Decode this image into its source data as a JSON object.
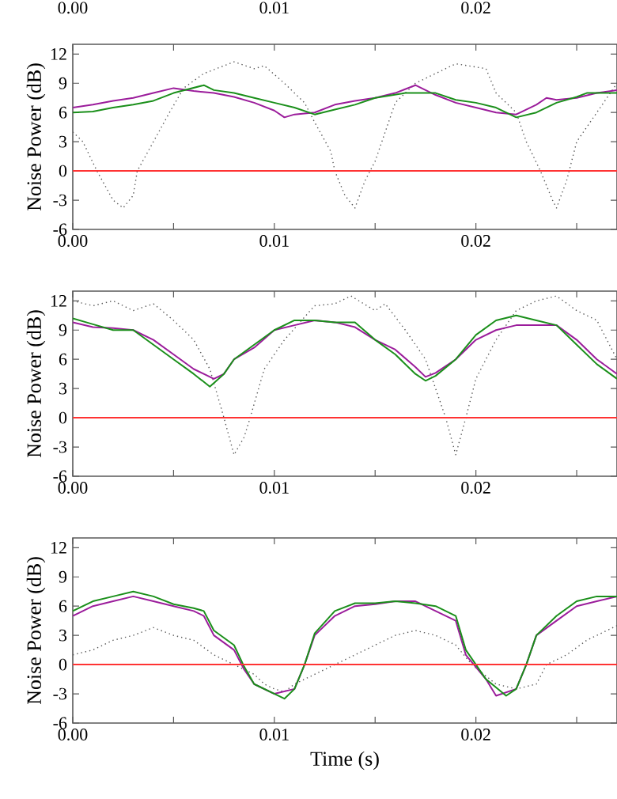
{
  "chart_data": [
    {
      "type": "other",
      "annotations": [
        "0.00",
        "0.01",
        "0.02"
      ]
    },
    {
      "type": "line",
      "ylabel": "Noise Power (dB)",
      "xlim": [
        0,
        0.027
      ],
      "ylim": [
        -6,
        13
      ],
      "xticks": [
        {
          "value": 0,
          "label": "0.00"
        },
        {
          "value": 0.005,
          "label": null
        },
        {
          "value": 0.01,
          "label": "0.01"
        },
        {
          "value": 0.015,
          "label": null
        },
        {
          "value": 0.02,
          "label": "0.02"
        },
        {
          "value": 0.025,
          "label": null
        }
      ],
      "yticks": [
        -6,
        -3,
        0,
        3,
        6,
        9,
        12
      ],
      "ref_lines": [
        {
          "axis": "y",
          "value": 0,
          "color": "#ff3333"
        }
      ],
      "series": [
        {
          "color": "#555555",
          "line_style": "dotted",
          "x": [
            0,
            0.0005,
            0.0012,
            0.002,
            0.0025,
            0.003,
            0.0032,
            0.004,
            0.0048,
            0.0055,
            0.0065,
            0.008,
            0.009,
            0.0095,
            0.0105,
            0.0115,
            0.012,
            0.0128,
            0.013,
            0.0135,
            0.014,
            0.0145,
            0.015,
            0.0155,
            0.016,
            0.017,
            0.018,
            0.019,
            0.0205,
            0.021,
            0.022,
            0.0225,
            0.0232,
            0.0238,
            0.024,
            0.0245,
            0.025,
            0.026,
            0.027
          ],
          "values": [
            4,
            3,
            0,
            -3,
            -3.8,
            -2.5,
            0,
            3,
            6,
            8.5,
            10,
            11.2,
            10.5,
            10.8,
            9,
            7,
            5,
            2,
            0,
            -2.5,
            -3.8,
            -1,
            1,
            4,
            7,
            9,
            10,
            11,
            10.5,
            8,
            6,
            3,
            0,
            -3,
            -3.8,
            -1,
            3,
            6,
            9
          ]
        },
        {
          "color": "#9b1c9b",
          "x": [
            0,
            0.001,
            0.002,
            0.003,
            0.004,
            0.005,
            0.006,
            0.007,
            0.008,
            0.009,
            0.01,
            0.0105,
            0.011,
            0.012,
            0.013,
            0.014,
            0.015,
            0.016,
            0.017,
            0.018,
            0.019,
            0.02,
            0.021,
            0.022,
            0.023,
            0.0235,
            0.024,
            0.025,
            0.026,
            0.027
          ],
          "values": [
            6.5,
            6.8,
            7.2,
            7.5,
            8,
            8.5,
            8.2,
            8,
            7.6,
            7,
            6.2,
            5.5,
            5.8,
            6,
            6.8,
            7.2,
            7.5,
            8,
            8.8,
            7.8,
            7,
            6.5,
            6,
            5.8,
            6.8,
            7.5,
            7.3,
            7.5,
            8,
            8.3
          ]
        },
        {
          "color": "#1a8f1a",
          "x": [
            0,
            0.001,
            0.002,
            0.003,
            0.004,
            0.005,
            0.0065,
            0.007,
            0.008,
            0.009,
            0.01,
            0.011,
            0.012,
            0.013,
            0.014,
            0.015,
            0.0165,
            0.018,
            0.019,
            0.02,
            0.021,
            0.022,
            0.023,
            0.024,
            0.025,
            0.0255,
            0.027
          ],
          "values": [
            6,
            6.1,
            6.5,
            6.8,
            7.2,
            8,
            8.8,
            8.3,
            8,
            7.5,
            7,
            6.5,
            5.8,
            6.3,
            6.8,
            7.5,
            8,
            8,
            7.3,
            7,
            6.5,
            5.5,
            6,
            7,
            7.6,
            8,
            8
          ]
        }
      ]
    },
    {
      "type": "line",
      "ylabel": "Noise Power (dB)",
      "xlim": [
        0,
        0.027
      ],
      "ylim": [
        -6,
        13
      ],
      "xticks": [
        {
          "value": 0,
          "label": "0.00"
        },
        {
          "value": 0.005,
          "label": null
        },
        {
          "value": 0.01,
          "label": "0.01"
        },
        {
          "value": 0.015,
          "label": null
        },
        {
          "value": 0.02,
          "label": "0.02"
        },
        {
          "value": 0.025,
          "label": null
        }
      ],
      "yticks": [
        -6,
        -3,
        0,
        3,
        6,
        9,
        12
      ],
      "ref_lines": [
        {
          "axis": "y",
          "value": 0,
          "color": "#ff3333"
        }
      ],
      "series": [
        {
          "color": "#555555",
          "line_style": "dotted",
          "x": [
            0,
            0.001,
            0.002,
            0.003,
            0.004,
            0.005,
            0.006,
            0.0068,
            0.0075,
            0.008,
            0.0085,
            0.0088,
            0.0095,
            0.0105,
            0.012,
            0.013,
            0.0138,
            0.015,
            0.0155,
            0.0165,
            0.0175,
            0.0185,
            0.019,
            0.0195,
            0.02,
            0.021,
            0.022,
            0.023,
            0.024,
            0.025,
            0.026,
            0.027
          ],
          "values": [
            12,
            11.5,
            12,
            11,
            11.7,
            10,
            8,
            5,
            0,
            -3.8,
            -2,
            0,
            5,
            8,
            11.5,
            11.7,
            12.5,
            11,
            11.7,
            9,
            6,
            0,
            -3.8,
            0,
            4,
            8,
            11,
            12,
            12.5,
            11,
            10,
            6
          ]
        },
        {
          "color": "#9b1c9b",
          "x": [
            0,
            0.001,
            0.002,
            0.003,
            0.004,
            0.005,
            0.006,
            0.007,
            0.0075,
            0.008,
            0.009,
            0.01,
            0.011,
            0.012,
            0.013,
            0.014,
            0.015,
            0.016,
            0.017,
            0.0175,
            0.018,
            0.019,
            0.02,
            0.021,
            0.022,
            0.023,
            0.024,
            0.025,
            0.026,
            0.027
          ],
          "values": [
            9.8,
            9.3,
            9.2,
            9,
            8,
            6.5,
            5,
            4,
            4.5,
            6,
            7.2,
            9,
            9.5,
            10,
            9.8,
            9.3,
            8,
            7,
            5.2,
            4.2,
            4.6,
            6,
            8,
            9,
            9.5,
            9.5,
            9.5,
            8,
            6,
            4.5
          ]
        },
        {
          "color": "#1a8f1a",
          "x": [
            0,
            0.001,
            0.002,
            0.003,
            0.004,
            0.005,
            0.006,
            0.0068,
            0.0075,
            0.008,
            0.009,
            0.01,
            0.011,
            0.012,
            0.013,
            0.014,
            0.015,
            0.016,
            0.017,
            0.0175,
            0.018,
            0.019,
            0.02,
            0.021,
            0.022,
            0.023,
            0.024,
            0.025,
            0.026,
            0.027
          ],
          "values": [
            10.2,
            9.6,
            9,
            9,
            7.5,
            6,
            4.5,
            3.2,
            4.5,
            6,
            7.5,
            9,
            10,
            10,
            9.8,
            9.8,
            8,
            6.5,
            4.5,
            3.8,
            4.3,
            6,
            8.5,
            10,
            10.5,
            10,
            9.5,
            7.5,
            5.5,
            4
          ]
        }
      ]
    },
    {
      "type": "line",
      "xlabel": "Time (s)",
      "ylabel": "Noise Power (dB)",
      "xlim": [
        0,
        0.027
      ],
      "ylim": [
        -6,
        13
      ],
      "xticks": [
        {
          "value": 0,
          "label": "0.00"
        },
        {
          "value": 0.005,
          "label": null
        },
        {
          "value": 0.01,
          "label": "0.01"
        },
        {
          "value": 0.015,
          "label": null
        },
        {
          "value": 0.02,
          "label": "0.02"
        },
        {
          "value": 0.025,
          "label": null
        }
      ],
      "yticks": [
        -6,
        -3,
        0,
        3,
        6,
        9,
        12
      ],
      "ref_lines": [
        {
          "axis": "y",
          "value": 0,
          "color": "#ff3333"
        }
      ],
      "series": [
        {
          "color": "#555555",
          "line_style": "dotted",
          "x": [
            0,
            0.001,
            0.002,
            0.003,
            0.004,
            0.005,
            0.006,
            0.007,
            0.008,
            0.009,
            0.0095,
            0.01,
            0.0105,
            0.011,
            0.012,
            0.013,
            0.014,
            0.015,
            0.016,
            0.017,
            0.018,
            0.019,
            0.0198,
            0.021,
            0.022,
            0.023,
            0.0235,
            0.0245,
            0.0255,
            0.0265,
            0.027
          ],
          "values": [
            1,
            1.5,
            2.5,
            3,
            3.8,
            3,
            2.5,
            1,
            0,
            -1,
            -2,
            -2.5,
            -2.8,
            -2,
            -1,
            0,
            1,
            2,
            3,
            3.5,
            3,
            2,
            0,
            -2,
            -2.5,
            -2,
            0,
            1,
            2.5,
            3.5,
            4
          ]
        },
        {
          "color": "#9b1c9b",
          "x": [
            0,
            0.001,
            0.002,
            0.003,
            0.004,
            0.005,
            0.006,
            0.0065,
            0.007,
            0.008,
            0.0085,
            0.009,
            0.01,
            0.011,
            0.0115,
            0.012,
            0.013,
            0.014,
            0.015,
            0.016,
            0.017,
            0.018,
            0.019,
            0.0195,
            0.0205,
            0.021,
            0.022,
            0.0225,
            0.023,
            0.024,
            0.025,
            0.026,
            0.027
          ],
          "values": [
            5,
            6,
            6.5,
            7,
            6.5,
            6,
            5.5,
            5,
            3,
            1.5,
            -0.5,
            -2,
            -3,
            -2.5,
            0,
            3,
            5,
            6,
            6.2,
            6.5,
            6.5,
            5.5,
            4.5,
            1,
            -1.5,
            -3.2,
            -2.5,
            0,
            3,
            4.5,
            6,
            6.5,
            7
          ]
        },
        {
          "color": "#1a8f1a",
          "x": [
            0,
            0.001,
            0.002,
            0.003,
            0.004,
            0.005,
            0.006,
            0.0065,
            0.007,
            0.008,
            0.0085,
            0.009,
            0.0105,
            0.011,
            0.0115,
            0.012,
            0.013,
            0.014,
            0.015,
            0.016,
            0.017,
            0.018,
            0.019,
            0.0195,
            0.0205,
            0.0215,
            0.022,
            0.0225,
            0.023,
            0.024,
            0.025,
            0.026,
            0.027
          ],
          "values": [
            5.5,
            6.5,
            7,
            7.5,
            7,
            6.2,
            5.8,
            5.5,
            3.5,
            2,
            -0.2,
            -2,
            -3.5,
            -2.5,
            0,
            3.2,
            5.5,
            6.3,
            6.3,
            6.5,
            6.3,
            6,
            5,
            1.5,
            -1.5,
            -3.2,
            -2.5,
            0,
            3,
            5,
            6.5,
            7,
            7
          ]
        }
      ]
    }
  ]
}
